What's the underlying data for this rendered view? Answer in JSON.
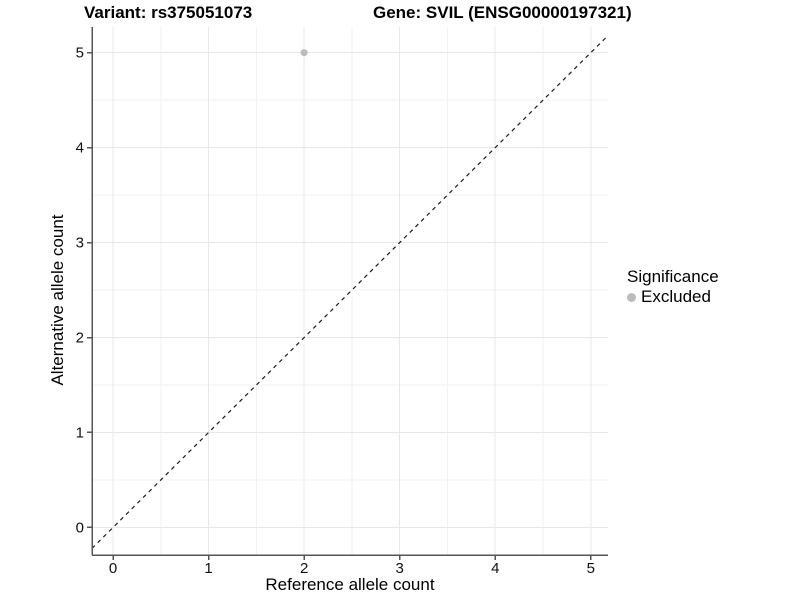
{
  "chart_data": {
    "type": "scatter",
    "title_left": "Variant: rs375051073",
    "title_right": "Gene: SVIL (ENSG00000197321)",
    "xlabel": "Reference allele count",
    "ylabel": "Alternative allele count",
    "xlim": [
      -0.22,
      5.18
    ],
    "ylim": [
      -0.29,
      5.27
    ],
    "x_ticks": [
      0,
      1,
      2,
      3,
      4,
      5
    ],
    "y_ticks": [
      0,
      1,
      2,
      3,
      4,
      5
    ],
    "minor_step": 0.5,
    "grid": true,
    "points": [
      {
        "x": 2,
        "y": 5,
        "series": "Excluded"
      }
    ],
    "abline": {
      "slope": 1,
      "intercept": 0,
      "style": "dashed"
    },
    "legend": {
      "title": "Significance",
      "position": "right",
      "items": [
        {
          "label": "Excluded",
          "color": "#bcbcbc"
        }
      ]
    },
    "colors": {
      "point": "#bcbcbc",
      "grid_major": "#e8e8e8",
      "grid_minor": "#f2f2f2",
      "axis": "#555555",
      "tick_label": "#111111",
      "abline": "#1a1a1a",
      "background": "#ffffff"
    }
  }
}
